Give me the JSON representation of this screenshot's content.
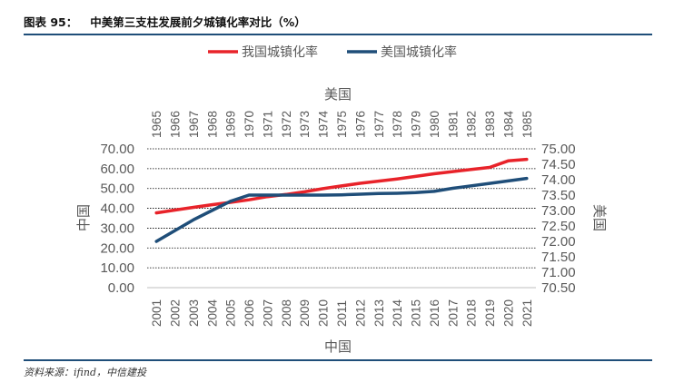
{
  "header": {
    "figure_label": "图表 95：",
    "title": "中美第三支柱发展前夕城镇化率对比（%）"
  },
  "source": "资料来源：ifind，中信建投",
  "colors": {
    "china": "#e8232a",
    "usa": "#1f4e79",
    "rule": "#1f4e79"
  },
  "chart_data": {
    "type": "line",
    "legend_position": "top",
    "top_axis_title": "美国",
    "bottom_axis_title": "中国",
    "left_axis_title": "中国",
    "right_axis_title": "美国",
    "x_bottom": [
      "2001",
      "2002",
      "2003",
      "2004",
      "2005",
      "2006",
      "2007",
      "2008",
      "2009",
      "2010",
      "2011",
      "2012",
      "2013",
      "2014",
      "2015",
      "2016",
      "2017",
      "2018",
      "2019",
      "2020",
      "2021"
    ],
    "x_top": [
      "1965",
      "1966",
      "1967",
      "1968",
      "1969",
      "1970",
      "1971",
      "1972",
      "1973",
      "1974",
      "1975",
      "1976",
      "1977",
      "1978",
      "1979",
      "1980",
      "1981",
      "1982",
      "1983",
      "1984",
      "1985"
    ],
    "y_left_ticks": [
      "0.00",
      "10.00",
      "20.00",
      "30.00",
      "40.00",
      "50.00",
      "60.00",
      "70.00"
    ],
    "y_right_ticks": [
      "70.50",
      "71.00",
      "71.50",
      "72.00",
      "72.50",
      "73.00",
      "73.50",
      "74.00",
      "74.50",
      "75.00"
    ],
    "y_left_range": [
      0,
      70
    ],
    "y_right_range": [
      70.5,
      75
    ],
    "grid": "horizontal dotted",
    "series": [
      {
        "name": "我国城镇化率",
        "axis": "left",
        "values": [
          37.7,
          39.1,
          40.5,
          41.8,
          43.0,
          44.3,
          45.9,
          47.0,
          48.3,
          49.9,
          51.3,
          52.6,
          53.7,
          54.8,
          56.1,
          57.4,
          58.5,
          59.6,
          60.6,
          63.9,
          64.7
        ]
      },
      {
        "name": "美国城镇化率",
        "axis": "right",
        "values": [
          72.0,
          72.35,
          72.7,
          73.0,
          73.3,
          73.5,
          73.5,
          73.5,
          73.5,
          73.5,
          73.51,
          73.53,
          73.55,
          73.56,
          73.58,
          73.62,
          73.72,
          73.8,
          73.88,
          73.96,
          74.04
        ]
      }
    ]
  }
}
